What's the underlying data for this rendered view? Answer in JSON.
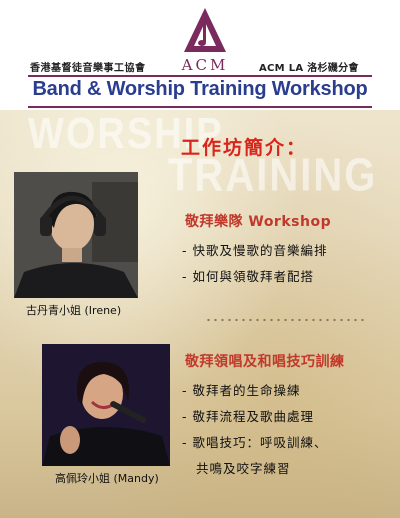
{
  "header": {
    "org_chinese": "香港基督徒音樂事工協會",
    "org_logo_text": "ACM",
    "org_branch": "ACM LA 洛杉磯分會",
    "title": "Band & Worship Training Workshop"
  },
  "background_words": [
    "WORSHIP",
    "TRAINING"
  ],
  "intro_heading": "工作坊簡介：",
  "instructors": [
    {
      "name": "古丹青小姐 (Irene)"
    },
    {
      "name": "高佩玲小姐 (Mandy)"
    }
  ],
  "sections": [
    {
      "title": "敬拜樂隊 Workshop",
      "bullets": [
        "- 快歌及慢歌的音樂編排",
        "- 如何與領敬拜者配搭"
      ]
    },
    {
      "title": "敬拜領唱及和唱技巧訓練",
      "bullets": [
        "- 敬拜者的生命操練",
        "- 敬拜流程及歌曲處理",
        "- 歌唱技巧：呼吸訓練、",
        "共鳴及咬字練習"
      ]
    }
  ],
  "colors": {
    "title_blue": "#2a3d8f",
    "accent_red": "#d9261c",
    "logo_purple": "#7a2a5d"
  }
}
